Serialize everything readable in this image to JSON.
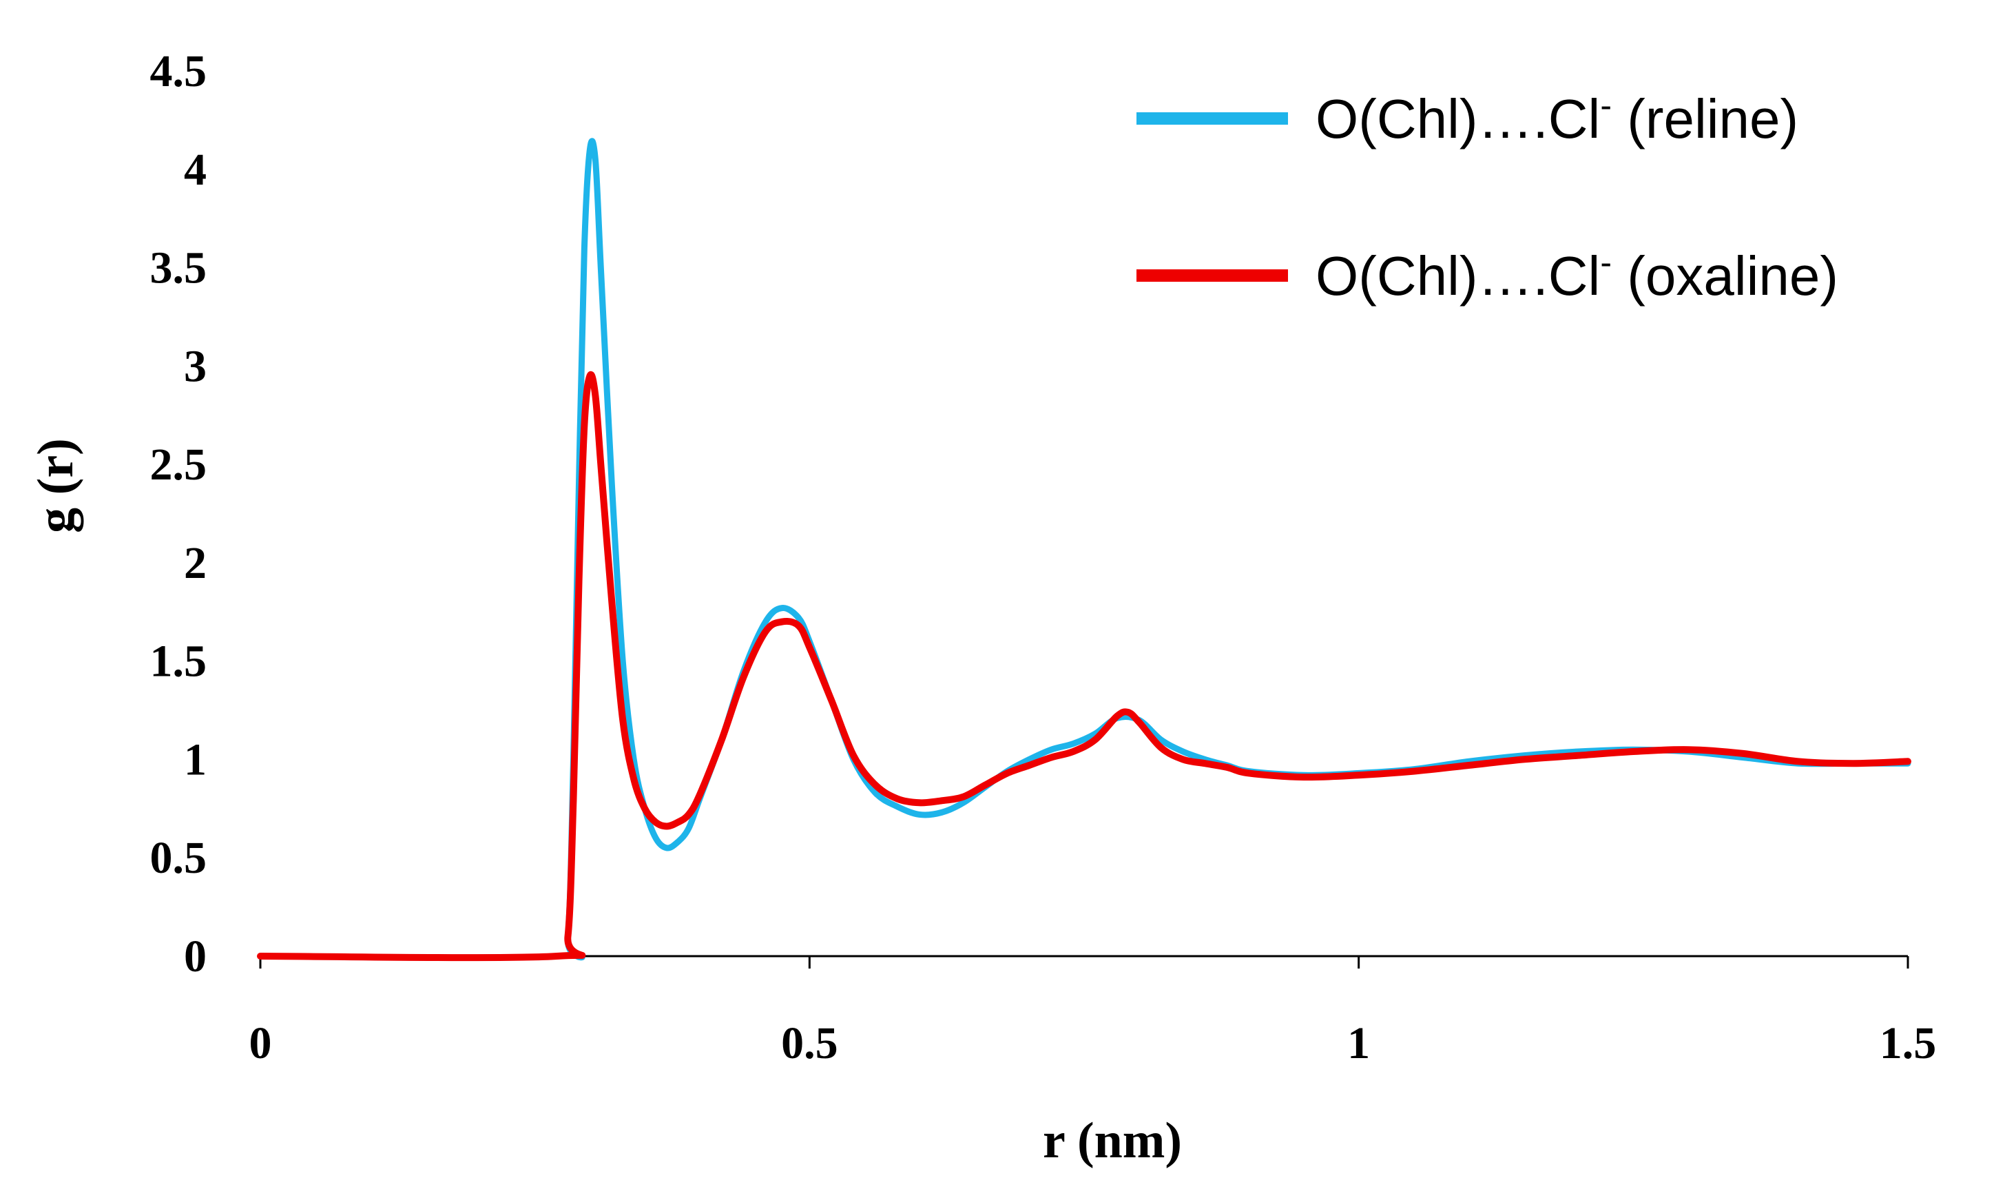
{
  "chart_data": {
    "type": "line",
    "title": "",
    "xlabel": "r (nm)",
    "ylabel": "g (r)",
    "xlim": [
      0,
      1.5
    ],
    "ylim": [
      0,
      4.5
    ],
    "xticks": [
      0,
      0.5,
      1,
      1.5
    ],
    "xtick_labels": [
      "0",
      "0.5",
      "1",
      "1.5"
    ],
    "yticks": [
      0,
      0.5,
      1,
      1.5,
      2,
      2.5,
      3,
      3.5,
      4,
      4.5
    ],
    "ytick_labels": [
      "0",
      "0.5",
      "1",
      "1.5",
      "2",
      "2.5",
      "3",
      "3.5",
      "4",
      "4.5"
    ],
    "grid": false,
    "legend_position": "top-right",
    "series": [
      {
        "name": "O(Chl)….Cl- (reline)",
        "label_main": "O(Chl)….Cl",
        "label_sup": "-",
        "label_tail": " (reline)",
        "color": "#1eb4ea",
        "points": [
          [
            0,
            0
          ],
          [
            0.27,
            0
          ],
          [
            0.28,
            0.1
          ],
          [
            0.285,
            1.0
          ],
          [
            0.29,
            2.4
          ],
          [
            0.295,
            3.6
          ],
          [
            0.3,
            4.1
          ],
          [
            0.305,
            4.05
          ],
          [
            0.31,
            3.5
          ],
          [
            0.32,
            2.4
          ],
          [
            0.33,
            1.5
          ],
          [
            0.34,
            1.0
          ],
          [
            0.35,
            0.75
          ],
          [
            0.36,
            0.6
          ],
          [
            0.37,
            0.55
          ],
          [
            0.38,
            0.58
          ],
          [
            0.39,
            0.65
          ],
          [
            0.4,
            0.8
          ],
          [
            0.42,
            1.1
          ],
          [
            0.44,
            1.45
          ],
          [
            0.46,
            1.7
          ],
          [
            0.475,
            1.77
          ],
          [
            0.49,
            1.72
          ],
          [
            0.5,
            1.6
          ],
          [
            0.52,
            1.3
          ],
          [
            0.54,
            1.0
          ],
          [
            0.56,
            0.83
          ],
          [
            0.58,
            0.76
          ],
          [
            0.6,
            0.72
          ],
          [
            0.62,
            0.73
          ],
          [
            0.64,
            0.78
          ],
          [
            0.66,
            0.86
          ],
          [
            0.68,
            0.94
          ],
          [
            0.7,
            1.0
          ],
          [
            0.72,
            1.05
          ],
          [
            0.74,
            1.08
          ],
          [
            0.76,
            1.13
          ],
          [
            0.78,
            1.21
          ],
          [
            0.8,
            1.2
          ],
          [
            0.82,
            1.1
          ],
          [
            0.84,
            1.04
          ],
          [
            0.86,
            1.0
          ],
          [
            0.88,
            0.97
          ],
          [
            0.9,
            0.94
          ],
          [
            0.95,
            0.92
          ],
          [
            1.0,
            0.93
          ],
          [
            1.05,
            0.95
          ],
          [
            1.1,
            0.99
          ],
          [
            1.15,
            1.02
          ],
          [
            1.2,
            1.04
          ],
          [
            1.25,
            1.05
          ],
          [
            1.3,
            1.04
          ],
          [
            1.35,
            1.01
          ],
          [
            1.4,
            0.98
          ],
          [
            1.45,
            0.98
          ],
          [
            1.5,
            0.98
          ]
        ]
      },
      {
        "name": "O(Chl)….Cl- (oxaline)",
        "label_main": "O(Chl)….Cl",
        "label_sup": "-",
        "label_tail": " (oxaline)",
        "color": "#ee0000",
        "points": [
          [
            0,
            0
          ],
          [
            0.27,
            0
          ],
          [
            0.28,
            0.1
          ],
          [
            0.285,
            0.8
          ],
          [
            0.29,
            1.9
          ],
          [
            0.295,
            2.7
          ],
          [
            0.3,
            2.95
          ],
          [
            0.305,
            2.85
          ],
          [
            0.31,
            2.5
          ],
          [
            0.32,
            1.8
          ],
          [
            0.33,
            1.2
          ],
          [
            0.34,
            0.9
          ],
          [
            0.35,
            0.75
          ],
          [
            0.36,
            0.68
          ],
          [
            0.37,
            0.66
          ],
          [
            0.38,
            0.68
          ],
          [
            0.39,
            0.72
          ],
          [
            0.4,
            0.82
          ],
          [
            0.42,
            1.1
          ],
          [
            0.44,
            1.42
          ],
          [
            0.46,
            1.65
          ],
          [
            0.475,
            1.7
          ],
          [
            0.49,
            1.68
          ],
          [
            0.5,
            1.57
          ],
          [
            0.52,
            1.3
          ],
          [
            0.54,
            1.02
          ],
          [
            0.56,
            0.87
          ],
          [
            0.58,
            0.8
          ],
          [
            0.6,
            0.78
          ],
          [
            0.62,
            0.79
          ],
          [
            0.64,
            0.81
          ],
          [
            0.66,
            0.87
          ],
          [
            0.68,
            0.93
          ],
          [
            0.7,
            0.97
          ],
          [
            0.72,
            1.01
          ],
          [
            0.74,
            1.04
          ],
          [
            0.76,
            1.1
          ],
          [
            0.78,
            1.22
          ],
          [
            0.79,
            1.24
          ],
          [
            0.8,
            1.19
          ],
          [
            0.82,
            1.06
          ],
          [
            0.84,
            1.0
          ],
          [
            0.86,
            0.98
          ],
          [
            0.88,
            0.96
          ],
          [
            0.9,
            0.93
          ],
          [
            0.95,
            0.91
          ],
          [
            1.0,
            0.92
          ],
          [
            1.05,
            0.94
          ],
          [
            1.1,
            0.97
          ],
          [
            1.15,
            1.0
          ],
          [
            1.2,
            1.02
          ],
          [
            1.25,
            1.04
          ],
          [
            1.3,
            1.05
          ],
          [
            1.35,
            1.03
          ],
          [
            1.4,
            0.99
          ],
          [
            1.45,
            0.98
          ],
          [
            1.5,
            0.99
          ]
        ]
      }
    ]
  }
}
